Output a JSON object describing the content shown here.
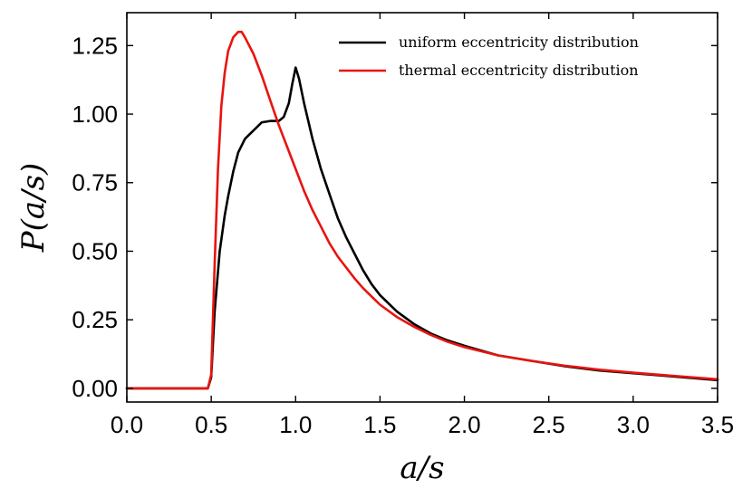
{
  "chart_data": {
    "type": "line",
    "title": "",
    "xlabel": "a/s",
    "ylabel": "P(a/s)",
    "xlim": [
      0.0,
      3.5
    ],
    "ylim": [
      -0.05,
      1.37
    ],
    "xticks": [
      0.0,
      0.5,
      1.0,
      1.5,
      2.0,
      2.5,
      3.0,
      3.5
    ],
    "xtick_labels": [
      "0.0",
      "0.5",
      "1.0",
      "1.5",
      "2.0",
      "2.5",
      "3.0",
      "3.5"
    ],
    "yticks": [
      0.0,
      0.25,
      0.5,
      0.75,
      1.0,
      1.25
    ],
    "ytick_labels": [
      "0.00",
      "0.25",
      "0.50",
      "0.75",
      "1.00",
      "1.25"
    ],
    "legend_position": "top-right",
    "series": [
      {
        "name": "uniform eccentricity distribution",
        "color": "#000000",
        "points": [
          [
            0.0,
            0.0
          ],
          [
            0.48,
            0.0
          ],
          [
            0.5,
            0.04
          ],
          [
            0.52,
            0.28
          ],
          [
            0.55,
            0.5
          ],
          [
            0.58,
            0.63
          ],
          [
            0.6,
            0.7
          ],
          [
            0.63,
            0.79
          ],
          [
            0.66,
            0.86
          ],
          [
            0.7,
            0.91
          ],
          [
            0.75,
            0.94
          ],
          [
            0.8,
            0.97
          ],
          [
            0.85,
            0.975
          ],
          [
            0.9,
            0.975
          ],
          [
            0.93,
            0.99
          ],
          [
            0.96,
            1.04
          ],
          [
            0.98,
            1.11
          ],
          [
            1.0,
            1.17
          ],
          [
            1.02,
            1.13
          ],
          [
            1.05,
            1.04
          ],
          [
            1.1,
            0.91
          ],
          [
            1.15,
            0.8
          ],
          [
            1.2,
            0.71
          ],
          [
            1.25,
            0.62
          ],
          [
            1.3,
            0.55
          ],
          [
            1.35,
            0.49
          ],
          [
            1.4,
            0.43
          ],
          [
            1.45,
            0.38
          ],
          [
            1.5,
            0.34
          ],
          [
            1.6,
            0.28
          ],
          [
            1.7,
            0.235
          ],
          [
            1.8,
            0.2
          ],
          [
            1.9,
            0.175
          ],
          [
            2.0,
            0.155
          ],
          [
            2.2,
            0.12
          ],
          [
            2.4,
            0.1
          ],
          [
            2.6,
            0.08
          ],
          [
            2.8,
            0.065
          ],
          [
            3.0,
            0.055
          ],
          [
            3.2,
            0.045
          ],
          [
            3.4,
            0.035
          ],
          [
            3.5,
            0.03
          ]
        ]
      },
      {
        "name": "thermal eccentricity distribution",
        "color": "#e8140f",
        "points": [
          [
            0.0,
            0.0
          ],
          [
            0.48,
            0.0
          ],
          [
            0.5,
            0.05
          ],
          [
            0.52,
            0.45
          ],
          [
            0.54,
            0.8
          ],
          [
            0.56,
            1.03
          ],
          [
            0.58,
            1.15
          ],
          [
            0.6,
            1.23
          ],
          [
            0.63,
            1.28
          ],
          [
            0.66,
            1.3
          ],
          [
            0.68,
            1.3
          ],
          [
            0.7,
            1.28
          ],
          [
            0.75,
            1.22
          ],
          [
            0.8,
            1.14
          ],
          [
            0.85,
            1.05
          ],
          [
            0.9,
            0.96
          ],
          [
            0.95,
            0.88
          ],
          [
            1.0,
            0.8
          ],
          [
            1.05,
            0.72
          ],
          [
            1.1,
            0.65
          ],
          [
            1.15,
            0.59
          ],
          [
            1.2,
            0.53
          ],
          [
            1.25,
            0.48
          ],
          [
            1.3,
            0.44
          ],
          [
            1.35,
            0.4
          ],
          [
            1.4,
            0.365
          ],
          [
            1.45,
            0.335
          ],
          [
            1.5,
            0.305
          ],
          [
            1.6,
            0.26
          ],
          [
            1.7,
            0.225
          ],
          [
            1.8,
            0.195
          ],
          [
            1.9,
            0.17
          ],
          [
            2.0,
            0.15
          ],
          [
            2.2,
            0.12
          ],
          [
            2.4,
            0.1
          ],
          [
            2.6,
            0.082
          ],
          [
            2.8,
            0.068
          ],
          [
            3.0,
            0.057
          ],
          [
            3.2,
            0.047
          ],
          [
            3.4,
            0.038
          ],
          [
            3.5,
            0.033
          ]
        ]
      }
    ]
  }
}
